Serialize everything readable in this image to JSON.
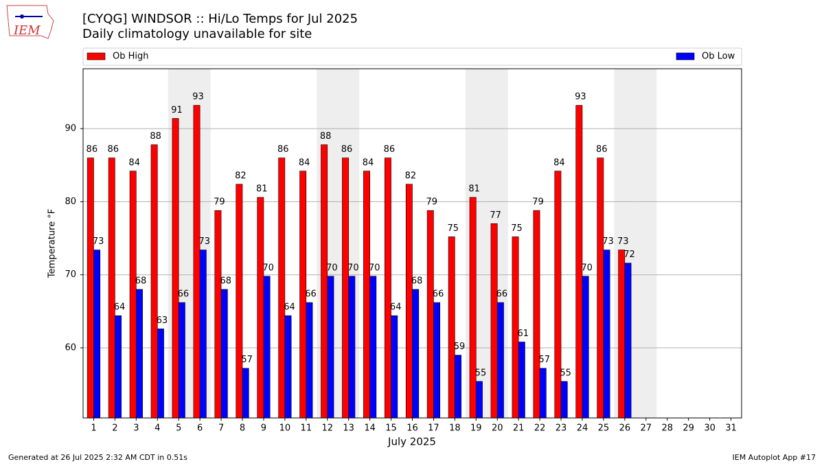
{
  "logo_text": "IEM",
  "footer_left": "Generated at 26 Jul 2025 2:32 AM CDT in 0.51s",
  "footer_right": "IEM Autoplot App #17",
  "chart_data": {
    "type": "bar",
    "title": "[CYQG] WINDSOR :: Hi/Lo Temps for Jul 2025",
    "subtitle": "Daily climatology unavailable for site",
    "xlabel": "July 2025",
    "ylabel": "Temperature °F",
    "categories": [
      "1",
      "2",
      "3",
      "4",
      "5",
      "6",
      "7",
      "8",
      "9",
      "10",
      "11",
      "12",
      "13",
      "14",
      "15",
      "16",
      "17",
      "18",
      "19",
      "20",
      "21",
      "22",
      "23",
      "24",
      "25",
      "26",
      "27",
      "28",
      "29",
      "30",
      "31"
    ],
    "shaded_categories": [
      "5",
      "6",
      "12",
      "13",
      "19",
      "20",
      "26",
      "27"
    ],
    "shade_color": "#eeeeee",
    "series": [
      {
        "name": "Ob High",
        "color": "#ff0000",
        "values": [
          86,
          86,
          84.2,
          87.8,
          91.4,
          93.2,
          78.8,
          82.4,
          80.6,
          86,
          84.2,
          87.8,
          86,
          84.2,
          86,
          82.4,
          78.8,
          75.2,
          80.6,
          77,
          75.2,
          78.8,
          84.2,
          93.2,
          86,
          73.4,
          null,
          null,
          null,
          null,
          null
        ],
        "value_labels": [
          "86",
          "86",
          "84",
          "88",
          "91",
          "93",
          "79",
          "82",
          "81",
          "86",
          "84",
          "88",
          "86",
          "84",
          "86",
          "82",
          "79",
          "75",
          "81",
          "77",
          "75",
          "79",
          "84",
          "93",
          "86",
          "73",
          null,
          null,
          null,
          null,
          null
        ]
      },
      {
        "name": "Ob Low",
        "color": "#0000ff",
        "values": [
          73.4,
          64.4,
          68,
          62.6,
          66.2,
          73.4,
          68,
          57.2,
          69.8,
          64.4,
          66.2,
          69.8,
          69.8,
          69.8,
          64.4,
          68,
          66.2,
          59,
          55.4,
          66.2,
          60.8,
          57.2,
          55.4,
          69.8,
          73.4,
          71.6,
          null,
          null,
          null,
          null,
          null
        ],
        "value_labels": [
          "73",
          "64",
          "68",
          "63",
          "66",
          "73",
          "68",
          "57",
          "70",
          "64",
          "66",
          "70",
          "70",
          "70",
          "64",
          "68",
          "66",
          "59",
          "55",
          "66",
          "61",
          "57",
          "55",
          "70",
          "73",
          "72",
          null,
          null,
          null,
          null,
          null
        ]
      }
    ],
    "ylim": [
      50.4,
      98.2
    ],
    "yticks": [
      60,
      70,
      80,
      90
    ],
    "grid": true,
    "legend": "top"
  }
}
